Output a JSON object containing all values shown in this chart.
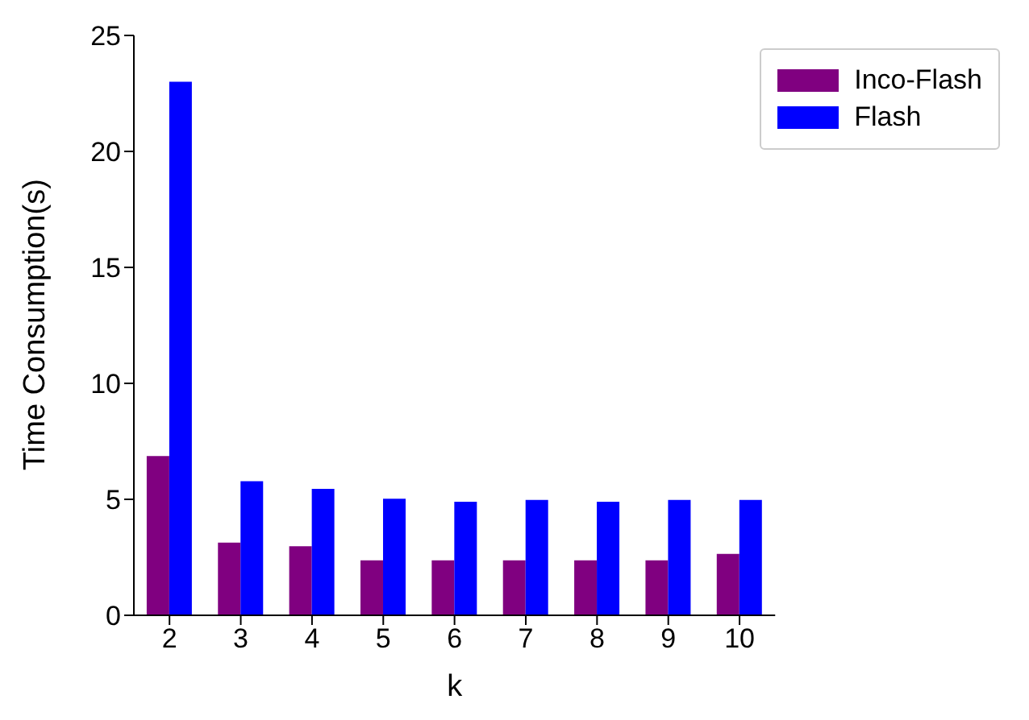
{
  "chart_data": {
    "type": "bar",
    "xlabel": "k",
    "ylabel": "Time Consumption(s)",
    "categories": [
      "2",
      "3",
      "4",
      "5",
      "6",
      "7",
      "8",
      "9",
      "10"
    ],
    "series": [
      {
        "name": "Inco-Flash",
        "color": "#800080",
        "values": [
          6.87,
          3.13,
          2.98,
          2.37,
          2.37,
          2.37,
          2.37,
          2.37,
          2.65
        ]
      },
      {
        "name": "Flash",
        "color": "#0000ff",
        "values": [
          23.0,
          5.78,
          5.45,
          5.03,
          4.9,
          4.97,
          4.9,
          4.97,
          4.97
        ]
      }
    ],
    "ylim": [
      0,
      25
    ],
    "yticks": [
      0,
      5,
      10,
      15,
      20,
      25
    ],
    "grid": false,
    "legend": "top right"
  }
}
